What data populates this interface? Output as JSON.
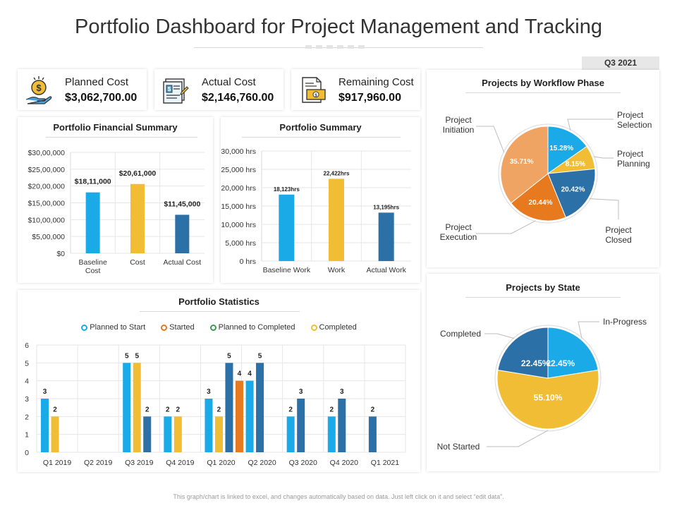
{
  "header": {
    "title": "Portfolio Dashboard for Project Management and Tracking",
    "period": "Q3 2021"
  },
  "kpis": [
    {
      "label": "Planned Cost",
      "value": "$3,062,700.00",
      "icon": "money-hand-icon"
    },
    {
      "label": "Actual Cost",
      "value": "$2,146,760.00",
      "icon": "invoice-icon"
    },
    {
      "label": "Remaining Cost",
      "value": "$917,960.00",
      "icon": "cash-document-icon"
    }
  ],
  "colors": {
    "blue_light": "#1aaae8",
    "blue_dark": "#2c70a8",
    "yellow": "#f0bd34",
    "orange": "#e7791f",
    "peach": "#f0a463",
    "green": "#3a9b52"
  },
  "footnote": "This graph/chart is linked to excel, and changes automatically based on data. Just left click on it and select “edit data”.",
  "chart_data": [
    {
      "id": "financial",
      "type": "bar",
      "title": "Portfolio Financial Summary",
      "categories": [
        "Baseline Cost",
        "Cost",
        "Actual Cost"
      ],
      "category_lines": [
        [
          "Baseline",
          "Cost"
        ],
        [
          "Cost"
        ],
        [
          "Actual Cost"
        ]
      ],
      "values": [
        1811000,
        2061000,
        1145000
      ],
      "data_labels": [
        "$18,11,000",
        "$20,61,000",
        "$11,45,000"
      ],
      "bar_colors": [
        "#1aaae8",
        "#f0bd34",
        "#2c70a8"
      ],
      "ylim": [
        0,
        3000000
      ],
      "yticks": [
        0,
        500000,
        1000000,
        1500000,
        2000000,
        2500000,
        3000000
      ],
      "ytick_labels": [
        "$0",
        "$5,00,000",
        "$10,00,000",
        "$15,00,000",
        "$20,00,000",
        "$25,00,000",
        "$30,00,000"
      ],
      "grid": true
    },
    {
      "id": "summary",
      "type": "bar",
      "title": "Portfolio Summary",
      "categories": [
        "Baseline Work",
        "Work",
        "Actual Work"
      ],
      "category_lines": [
        [
          "Baseline Work"
        ],
        [
          "Work"
        ],
        [
          "Actual Work"
        ]
      ],
      "values": [
        18123,
        22422,
        13195
      ],
      "data_labels": [
        "18,123hrs",
        "22,422hrs",
        "13,195hrs"
      ],
      "bar_colors": [
        "#1aaae8",
        "#f0bd34",
        "#2c70a8"
      ],
      "ylim": [
        0,
        30000
      ],
      "yticks": [
        0,
        5000,
        10000,
        15000,
        20000,
        25000,
        30000
      ],
      "ytick_labels": [
        "0 hrs",
        "5,000 hrs",
        "10,000 hrs",
        "15,000 hrs",
        "20,000 hrs",
        "25,000 hrs",
        "30,000 hrs"
      ],
      "grid": true
    },
    {
      "id": "statistics",
      "type": "bar",
      "title": "Portfolio Statistics",
      "categories": [
        "Q1 2019",
        "Q2 2019",
        "Q3 2019",
        "Q4 2019",
        "Q1 2020",
        "Q2 2020",
        "Q3 2020",
        "Q4 2020",
        "Q1 2021"
      ],
      "series": [
        {
          "name": "Planned to Start",
          "color": "#1aaae8",
          "values": [
            3,
            null,
            5,
            2,
            3,
            4,
            2,
            2,
            null
          ]
        },
        {
          "name": "Started",
          "color": "#e7791f",
          "values": [
            null,
            null,
            null,
            null,
            null,
            null,
            null,
            null,
            null
          ]
        },
        {
          "name": "Planned to Completed",
          "color": "#3a9b52",
          "values": [
            null,
            null,
            null,
            null,
            null,
            null,
            null,
            null,
            null
          ]
        },
        {
          "name": "Completed",
          "color": "#f0bd34",
          "values": [
            2,
            null,
            5,
            2,
            2,
            null,
            null,
            null,
            null
          ]
        },
        {
          "name": "",
          "color": "#2c70a8",
          "values": [
            null,
            null,
            2,
            null,
            5,
            5,
            3,
            3,
            2
          ]
        },
        {
          "name": "",
          "color": "#e7791f",
          "values": [
            null,
            null,
            null,
            null,
            4,
            null,
            null,
            null,
            null
          ]
        }
      ],
      "ylim": [
        0,
        6
      ],
      "yticks": [
        0,
        1,
        2,
        3,
        4,
        5,
        6
      ],
      "legend": "top",
      "grid": true
    },
    {
      "id": "workflow",
      "type": "pie",
      "title": "Projects by Workflow Phase",
      "slices": [
        {
          "name": "Project Selection",
          "value": 15.28,
          "label": "15.28%",
          "color": "#1aaae8",
          "label_lines": [
            "Project",
            "Selection"
          ]
        },
        {
          "name": "Project Planning",
          "value": 8.15,
          "label": "8.15%",
          "color": "#f0bd34",
          "label_lines": [
            "Project",
            "Planning"
          ]
        },
        {
          "name": "Project Closed",
          "value": 20.42,
          "label": "20.42%",
          "color": "#2c70a8",
          "label_lines": [
            "Project",
            "Closed"
          ]
        },
        {
          "name": "Project Execution",
          "value": 20.44,
          "label": "20.44%",
          "color": "#e7791f",
          "label_lines": [
            "Project",
            "Execution"
          ]
        },
        {
          "name": "Project Initiation",
          "value": 35.71,
          "label": "35.71%",
          "color": "#f0a463",
          "label_lines": [
            "Project",
            "Initiation"
          ]
        }
      ]
    },
    {
      "id": "state",
      "type": "pie",
      "title": "Projects by State",
      "slices": [
        {
          "name": "In-Progress",
          "value": 22.45,
          "label": "22.45%",
          "color": "#1aaae8",
          "label_lines": [
            "In-Progress"
          ]
        },
        {
          "name": "Not Started",
          "value": 55.1,
          "label": "55.10%",
          "color": "#f0bd34",
          "label_lines": [
            "Not Started"
          ]
        },
        {
          "name": "Completed",
          "value": 22.45,
          "label": "22.45%",
          "color": "#2c70a8",
          "label_lines": [
            "Completed"
          ]
        }
      ]
    }
  ]
}
